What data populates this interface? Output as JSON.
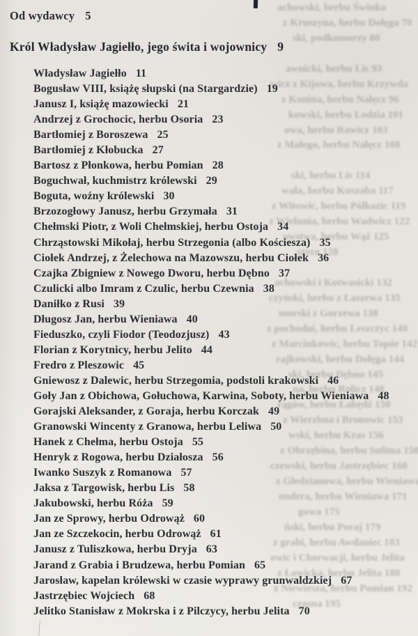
{
  "toc": {
    "front_item": {
      "label": "Od wydawcy",
      "page": "5"
    },
    "chapter": {
      "label": "Król Władysław Jagiełło, jego świta i wojownicy",
      "page": "9"
    },
    "entries": [
      {
        "label": "Władysław Jagiełło",
        "page": "11"
      },
      {
        "label": "Bogusław VIII, książę słupski (na Stargardzie)",
        "page": "19"
      },
      {
        "label": "Janusz I, książę mazowiecki",
        "page": "21"
      },
      {
        "label": "Andrzej z Grochocic, herbu Osoria",
        "page": "23"
      },
      {
        "label": "Bartłomiej z Boroszewa",
        "page": "25"
      },
      {
        "label": "Bartłomiej z Kłobucka",
        "page": "27"
      },
      {
        "label": "Bartosz z Płonkowa, herbu Pomian",
        "page": "28"
      },
      {
        "label": "Boguchwał, kuchmistrz królewski",
        "page": "29"
      },
      {
        "label": "Boguta, woźny królewski",
        "page": "30"
      },
      {
        "label": "Brzozogłowy Janusz, herbu Grzymała",
        "page": "31"
      },
      {
        "label": "Chełmski Piotr, z Woli Chełmskiej, herbu Ostoja",
        "page": "34"
      },
      {
        "label": "Chrząstowski Mikołaj, herbu Strzegonia (albo Kościesza)",
        "page": "35"
      },
      {
        "label": "Ciołek Andrzej, z Żelechowa na Mazowszu, herbu Ciołek",
        "page": "36"
      },
      {
        "label": "Czajka Zbigniew z Nowego Dworu, herbu Dębno",
        "page": "37"
      },
      {
        "label": "Czulicki albo Imram z Czulic, herbu Czewnia",
        "page": "38"
      },
      {
        "label": "Daniłko z Rusi",
        "page": "39"
      },
      {
        "label": "Długosz Jan, herbu Wieniawa",
        "page": "40"
      },
      {
        "label": "Fieduszko, czyli Fiodor (Teodozjusz)",
        "page": "43"
      },
      {
        "label": "Florian z Korytnicy, herbu Jelito",
        "page": "44"
      },
      {
        "label": "Fredro z Pleszowic",
        "page": "45"
      },
      {
        "label": "Gniewosz z Dalewic, herbu Strzegomia, podstoli krakowski",
        "page": "46"
      },
      {
        "label": "Goły Jan z Obichowa, Gołuchowa, Karwina, Soboty, herbu Wieniawa",
        "page": "48"
      },
      {
        "label": "Gorajski Aleksander, z Goraja, herbu Korczak",
        "page": "49"
      },
      {
        "label": "Granowski Wincenty z Granowa, herbu Leliwa",
        "page": "50"
      },
      {
        "label": "Hanek z Chełma, herbu Ostoja",
        "page": "55"
      },
      {
        "label": "Henryk z Rogowa, herbu Działosza",
        "page": "56"
      },
      {
        "label": "Iwanko Suszyk z Romanowa",
        "page": "57"
      },
      {
        "label": "Jaksa z Targowisk, herbu Lis",
        "page": "58"
      },
      {
        "label": "Jakubowski, herbu Róża",
        "page": "59"
      },
      {
        "label": "Jan ze Sprowy, herbu Odrowąż",
        "page": "60"
      },
      {
        "label": "Jan ze Szczekocin, herbu Odrowąż",
        "page": "61"
      },
      {
        "label": "Janusz z Tuliszkowa, herbu Dryja",
        "page": "63"
      },
      {
        "label": "Jarand z Grabia i Brudzewa, herbu Pomian",
        "page": "65"
      },
      {
        "label": "Jarosław, kapelan królewski w czasie wyprawy grunwaldzkiej",
        "page": "67"
      },
      {
        "label": "Jastrzębiec Wojciech",
        "page": "68"
      },
      {
        "label": "Jelitko Stanisław z Mokrska i z Pilczycy, herbu Jelita",
        "page": "70"
      }
    ]
  },
  "bleedthrough_ghost_lines": [
    {
      "t": "achowski, herbu Świnka",
      "i": 20
    },
    {
      "t": "z Kruszyna, herbu Dołęga  70",
      "i": 28
    },
    {
      "t": "ski, podkomorzy  80",
      "i": 42
    },
    {
      "t": "",
      "i": 0
    },
    {
      "t": "awnicki, herbu Lis  93",
      "i": 32
    },
    {
      "t": "wicz z Kijowa, herbu Krzywda",
      "i": 10
    },
    {
      "t": "z Konina, herbu Nałęcz  96",
      "i": 26
    },
    {
      "t": "kowski, herbu Lodzia  101",
      "i": 36
    },
    {
      "t": "owa, herbu Rawicz  103",
      "i": 30
    },
    {
      "t": "z Małego, herbu Nałęcz  108",
      "i": 20
    },
    {
      "t": "",
      "i": 0
    },
    {
      "t": "ski, herbu Lis  114",
      "i": 40
    },
    {
      "t": "wała, herbu Kuszaba  117",
      "i": 26
    },
    {
      "t": "z Witowic, herbu Półkozic  119",
      "i": 12
    },
    {
      "t": "z Wielunia, herbu Wadwicz  122",
      "i": 8
    },
    {
      "t": "owstwa, herbu Wąż  125",
      "i": 28
    },
    {
      "t": "szyce  128",
      "i": 48
    },
    {
      "t": "",
      "i": 0
    },
    {
      "t": "achowski i Kotwasicki  132",
      "i": 16
    },
    {
      "t": "czyński, herbu z Łaszewa  135",
      "i": 8
    },
    {
      "t": "morski z Gorzewa  138",
      "i": 22
    },
    {
      "t": "z pochodni, herbu Leszczyc  140",
      "i": 5
    },
    {
      "t": "z Marcinkowic, herbu Topór  142",
      "i": 12
    },
    {
      "t": "rajkowski, herbu Dołęga  144",
      "i": 18
    },
    {
      "t": "ski, herbu Dębno  145",
      "i": 36
    },
    {
      "t": "na, herbu Rolicz  148",
      "i": 42
    },
    {
      "t": "rągów, herbu Łabędź  150",
      "i": 20
    },
    {
      "t": "z Wierzbna i Bronowic  153",
      "i": 28
    },
    {
      "t": "wski, herbu Kras  156",
      "i": 36
    },
    {
      "t": "z Obrzębina, herbu Sulima  158",
      "i": 24
    },
    {
      "t": "czewski, herbu Jastrzębiec  160",
      "i": 10
    },
    {
      "t": "z Gledzianowa, herbu Wieniawa",
      "i": 18
    },
    {
      "t": "ondera, herbu Wieniawa  171",
      "i": 22
    },
    {
      "t": "gowa  175",
      "i": 50
    },
    {
      "t": "ński, herbu Poraj  179",
      "i": 30
    },
    {
      "t": "z grabi, herbu Awdaniec  183",
      "i": 14
    },
    {
      "t": "owic i Chorwacji, herbu Jelita",
      "i": 10
    },
    {
      "t": "z Łowicka, herbu Jelita  188",
      "i": 20
    },
    {
      "t": "z Niewiesza, herbu Pomian  192",
      "i": 15
    },
    {
      "t": "czosna  195",
      "i": 42
    }
  ]
}
